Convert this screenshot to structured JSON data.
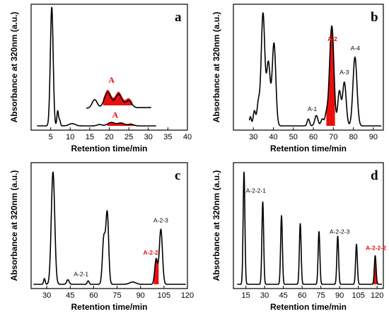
{
  "chart_data": [
    {
      "type": "line",
      "panel_label": "a",
      "xlabel": "Retention time/min",
      "ylabel": "Absorbance at 320nm (a.u.)",
      "xlim": [
        0,
        40
      ],
      "x_ticks": [
        "5",
        "10",
        "15",
        "20",
        "25",
        "30",
        "35",
        "40"
      ],
      "x_tick_values": [
        5,
        10,
        15,
        20,
        25,
        30,
        35,
        40
      ],
      "ylim": [
        0,
        1
      ],
      "highlight_color": "#e8100f",
      "trace_peaks": [
        {
          "rt": 5.3,
          "height": 1.0,
          "width": 0.35
        },
        {
          "rt": 4.9,
          "height": 0.08,
          "width": 0.3
        },
        {
          "rt": 6.8,
          "height": 0.13,
          "width": 0.2
        },
        {
          "rt": 7.3,
          "height": 0.05,
          "width": 0.2
        },
        {
          "rt": 10.5,
          "height": 0.02,
          "width": 0.8
        },
        {
          "rt": 17.5,
          "height": 0.012,
          "width": 0.6
        },
        {
          "rt": 20.5,
          "height": 0.03,
          "width": 0.9
        },
        {
          "rt": 23.0,
          "height": 0.025,
          "width": 0.9
        },
        {
          "rt": 25.5,
          "height": 0.015,
          "width": 0.7
        }
      ],
      "highlight_range": [
        19.5,
        26.5
      ],
      "annotations": [
        {
          "text": "A",
          "x": 21.5,
          "y": 0.07
        }
      ],
      "inset": {
        "label": "A",
        "x_range": [
          15.5,
          31
        ],
        "peaks": [
          {
            "rt": 17.5,
            "height": 0.3,
            "width": 0.6
          },
          {
            "rt": 20.6,
            "height": 0.55,
            "width": 0.8
          },
          {
            "rt": 23.2,
            "height": 0.48,
            "width": 0.8
          },
          {
            "rt": 25.6,
            "height": 0.25,
            "width": 0.7
          }
        ],
        "highlight_range": [
          19.5,
          26.5
        ]
      }
    },
    {
      "type": "line",
      "panel_label": "b",
      "xlabel": "Retention time/min",
      "ylabel": "Absorbance at 320nm (a.u.)",
      "xlim": [
        20,
        95
      ],
      "x_ticks": [
        "30",
        "40",
        "50",
        "60",
        "70",
        "80",
        "90"
      ],
      "x_tick_values": [
        30,
        40,
        50,
        60,
        70,
        80,
        90
      ],
      "ylim": [
        0,
        1
      ],
      "highlight_color": "#e8100f",
      "trace_peaks": [
        {
          "rt": 28.5,
          "height": 0.08,
          "width": 0.5
        },
        {
          "rt": 30.5,
          "height": 0.13,
          "width": 0.6
        },
        {
          "rt": 32.5,
          "height": 0.2,
          "width": 0.7
        },
        {
          "rt": 34.8,
          "height": 0.98,
          "width": 0.9
        },
        {
          "rt": 37.5,
          "height": 0.55,
          "width": 0.9
        },
        {
          "rt": 40.3,
          "height": 0.72,
          "width": 0.9
        },
        {
          "rt": 57.5,
          "height": 0.06,
          "width": 0.6
        },
        {
          "rt": 61.5,
          "height": 0.09,
          "width": 0.8
        },
        {
          "rt": 64.5,
          "height": 0.06,
          "width": 0.7
        },
        {
          "rt": 66.5,
          "height": 0.1,
          "width": 0.7
        },
        {
          "rt": 68.5,
          "height": 0.42,
          "width": 0.9
        },
        {
          "rt": 69.6,
          "height": 0.62,
          "width": 0.9
        },
        {
          "rt": 73.0,
          "height": 0.3,
          "width": 0.8
        },
        {
          "rt": 75.5,
          "height": 0.38,
          "width": 0.9
        },
        {
          "rt": 80.8,
          "height": 0.6,
          "width": 1.0
        }
      ],
      "highlight_range": [
        66.5,
        70.8
      ],
      "annotations": [
        {
          "text": "A-1",
          "x": 59.5,
          "y": 0.13,
          "highlighted": false
        },
        {
          "text": "A-2",
          "x": 69.5,
          "y": 0.74,
          "highlighted": true
        },
        {
          "text": "A-3",
          "x": 75.5,
          "y": 0.45,
          "highlighted": false
        },
        {
          "text": "A-4",
          "x": 81.0,
          "y": 0.66,
          "highlighted": false
        }
      ]
    },
    {
      "type": "line",
      "panel_label": "c",
      "xlabel": "Retention time/min",
      "ylabel": "Absorbance at 320nm (a.u.)",
      "xlim": [
        20,
        120
      ],
      "x_ticks": [
        "30",
        "45",
        "60",
        "75",
        "90",
        "105",
        "120"
      ],
      "x_tick_values": [
        30,
        45,
        60,
        75,
        90,
        105,
        120
      ],
      "ylim": [
        0,
        1
      ],
      "highlight_color": "#e8100f",
      "trace_peaks": [
        {
          "rt": 28.5,
          "height": 0.05,
          "width": 0.5
        },
        {
          "rt": 34.0,
          "height": 0.98,
          "width": 1.1
        },
        {
          "rt": 43.5,
          "height": 0.04,
          "width": 0.8
        },
        {
          "rt": 56.5,
          "height": 0.03,
          "width": 0.6
        },
        {
          "rt": 66.5,
          "height": 0.4,
          "width": 0.9
        },
        {
          "rt": 68.7,
          "height": 0.62,
          "width": 0.9
        },
        {
          "rt": 85.0,
          "height": 0.02,
          "width": 2.0
        },
        {
          "rt": 100.0,
          "height": 0.22,
          "width": 0.9
        },
        {
          "rt": 103.0,
          "height": 0.48,
          "width": 1.0
        }
      ],
      "highlight_range": [
        98.5,
        101.6
      ],
      "annotations": [
        {
          "text": "A-2-1",
          "x": 52.0,
          "y": 0.07,
          "highlighted": false
        },
        {
          "text": "A-2-2",
          "x": 96.5,
          "y": 0.26,
          "highlighted": true
        },
        {
          "text": "A-2-3",
          "x": 103.0,
          "y": 0.54,
          "highlighted": false
        }
      ]
    },
    {
      "type": "line",
      "panel_label": "d",
      "xlabel": "Retention time/min",
      "ylabel": "Absorbance at 320nm (a.u.)",
      "xlim": [
        5,
        125
      ],
      "x_ticks": [
        "15",
        "30",
        "45",
        "60",
        "75",
        "90",
        "105",
        "120"
      ],
      "x_tick_values": [
        15,
        30,
        45,
        60,
        75,
        90,
        105,
        120
      ],
      "ylim": [
        0,
        1
      ],
      "highlight_color": "#e8100f",
      "trace_peaks": [
        {
          "rt": 13.5,
          "height": 0.98,
          "width": 0.7
        },
        {
          "rt": 28.5,
          "height": 0.72,
          "width": 0.7
        },
        {
          "rt": 43.5,
          "height": 0.6,
          "width": 0.7
        },
        {
          "rt": 58.5,
          "height": 0.53,
          "width": 0.7
        },
        {
          "rt": 73.5,
          "height": 0.46,
          "width": 0.7
        },
        {
          "rt": 88.5,
          "height": 0.42,
          "width": 0.7
        },
        {
          "rt": 103.5,
          "height": 0.35,
          "width": 0.7
        },
        {
          "rt": 118.5,
          "height": 0.25,
          "width": 0.7
        }
      ],
      "highlight_range": [
        117.0,
        120.0
      ],
      "annotations": [
        {
          "text": "A-2-2-1",
          "x": 23.0,
          "y": 0.8,
          "highlighted": false
        },
        {
          "text": "A-2-2-3",
          "x": 90.0,
          "y": 0.44,
          "highlighted": false
        },
        {
          "text": "A-2-2-2",
          "x": 119.0,
          "y": 0.3,
          "highlighted": true
        }
      ]
    }
  ]
}
